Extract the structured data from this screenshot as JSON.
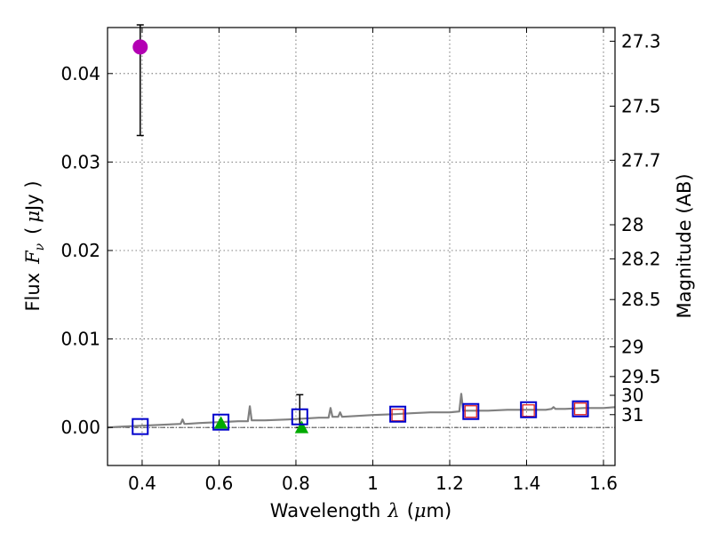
{
  "chart_data": {
    "type": "scatter",
    "xlabel": "Wavelength λ (μm)",
    "xlabel_parts": {
      "text": "Wavelength",
      "symbol": "λ",
      "unit_open": "(",
      "mu": "μ",
      "unit": "m)"
    },
    "ylabel": "Flux F_ν ( μJy )",
    "ylabel_parts": {
      "text": "Flux",
      "symbol": "F",
      "sub": "ν",
      "unit_open": "(",
      "mu": "μ",
      "unit": "Jy )"
    },
    "y2label": "Magnitude (AB)",
    "xlim": [
      0.31,
      1.63
    ],
    "ylim": [
      -0.0043,
      0.0452
    ],
    "grid": true,
    "x_ticks": [
      {
        "value": 0.4,
        "label": "0.4"
      },
      {
        "value": 0.6,
        "label": "0.6"
      },
      {
        "value": 0.8,
        "label": "0.8"
      },
      {
        "value": 1.0,
        "label": "1"
      },
      {
        "value": 1.2,
        "label": "1.2"
      },
      {
        "value": 1.4,
        "label": "1.4"
      },
      {
        "value": 1.6,
        "label": "1.6"
      }
    ],
    "y_ticks": [
      {
        "value": 0.0,
        "label": "0.00"
      },
      {
        "value": 0.01,
        "label": "0.01"
      },
      {
        "value": 0.02,
        "label": "0.02"
      },
      {
        "value": 0.03,
        "label": "0.03"
      },
      {
        "value": 0.04,
        "label": "0.04"
      }
    ],
    "mag_ticks": [
      {
        "mag": 27.3,
        "label": "27.3"
      },
      {
        "mag": 27.5,
        "label": "27.5"
      },
      {
        "mag": 27.7,
        "label": "27.7"
      },
      {
        "mag": 28,
        "label": "28"
      },
      {
        "mag": 28.2,
        "label": "28.2"
      },
      {
        "mag": 28.5,
        "label": "28.5"
      },
      {
        "mag": 29,
        "label": "29"
      },
      {
        "mag": 29.5,
        "label": "29.5"
      },
      {
        "mag": 30,
        "label": "30"
      },
      {
        "mag": 31,
        "label": "31"
      }
    ],
    "zero_line_y": 0.0,
    "series": [
      {
        "name": "model_sed",
        "style": "line",
        "color": "#808080",
        "x": [
          0.31,
          0.35,
          0.4,
          0.45,
          0.5,
          0.505,
          0.51,
          0.515,
          0.55,
          0.6,
          0.65,
          0.675,
          0.68,
          0.685,
          0.72,
          0.78,
          0.82,
          0.86,
          0.885,
          0.89,
          0.895,
          0.91,
          0.915,
          0.92,
          0.96,
          1.0,
          1.06,
          1.1,
          1.15,
          1.2,
          1.225,
          1.23,
          1.235,
          1.26,
          1.3,
          1.35,
          1.4,
          1.45,
          1.465,
          1.47,
          1.475,
          1.5,
          1.55,
          1.6,
          1.63
        ],
        "y": [
          0.0,
          0.0001,
          0.0002,
          0.0003,
          0.0004,
          0.0009,
          0.0004,
          0.0004,
          0.0005,
          0.0006,
          0.0007,
          0.0007,
          0.0024,
          0.0008,
          0.0008,
          0.0009,
          0.001,
          0.0011,
          0.0011,
          0.0022,
          0.0012,
          0.0012,
          0.0017,
          0.0012,
          0.0013,
          0.0014,
          0.0015,
          0.0016,
          0.0017,
          0.0017,
          0.0018,
          0.0038,
          0.0019,
          0.0019,
          0.0019,
          0.002,
          0.002,
          0.002,
          0.0021,
          0.0023,
          0.0021,
          0.0021,
          0.0022,
          0.0022,
          0.0023
        ]
      },
      {
        "name": "observed_magenta",
        "style": "circle",
        "color": "#b300b3",
        "points": [
          {
            "x": 0.395,
            "y": 0.043,
            "err_low": 0.033,
            "err_high": 0.0455
          }
        ]
      },
      {
        "name": "observed_blue",
        "style": "square",
        "color": "#0000cc",
        "points": [
          {
            "x": 0.395,
            "y": 0.0001
          },
          {
            "x": 0.605,
            "y": 0.0006
          },
          {
            "x": 0.81,
            "y": 0.0012,
            "err_low": 0.0,
            "err_high": 0.0037
          },
          {
            "x": 1.065,
            "y": 0.0015
          },
          {
            "x": 1.255,
            "y": 0.0018
          },
          {
            "x": 1.405,
            "y": 0.002
          },
          {
            "x": 1.54,
            "y": 0.0021
          }
        ]
      },
      {
        "name": "model_red",
        "style": "square",
        "color": "#dd2222",
        "points": [
          {
            "x": 1.065,
            "y": 0.0014
          },
          {
            "x": 1.255,
            "y": 0.0018
          },
          {
            "x": 1.405,
            "y": 0.0019
          },
          {
            "x": 1.54,
            "y": 0.0021
          }
        ]
      },
      {
        "name": "model_green",
        "style": "triangle",
        "color": "#00aa00",
        "points": [
          {
            "x": 0.605,
            "y": 0.0005
          },
          {
            "x": 0.815,
            "y": 0.0
          }
        ]
      }
    ]
  }
}
